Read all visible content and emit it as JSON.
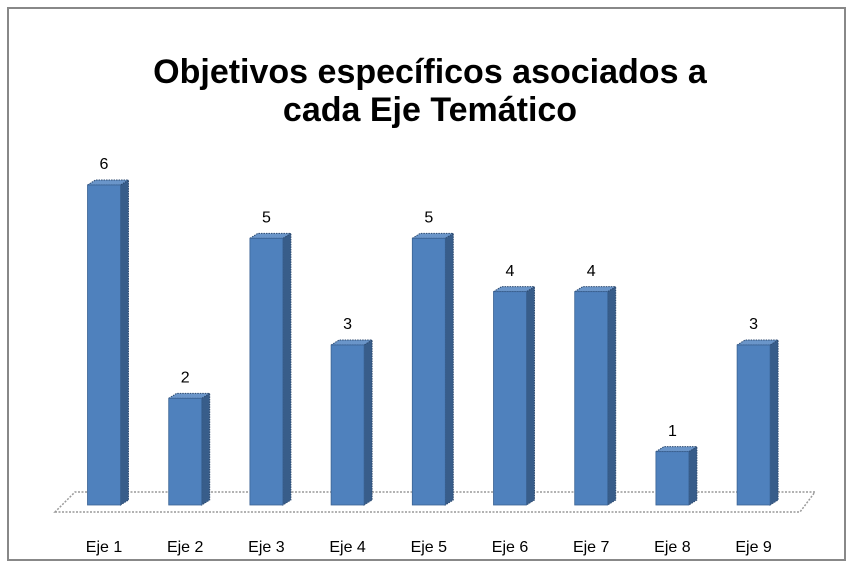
{
  "chart_data": {
    "type": "bar3d",
    "title": [
      "Objetivos específicos asociados a",
      "cada Eje Temático"
    ],
    "categories": [
      "Eje 1",
      "Eje 2",
      "Eje 3",
      "Eje 4",
      "Eje 5",
      "Eje 6",
      "Eje 7",
      "Eje 8",
      "Eje 9"
    ],
    "values": [
      6,
      2,
      5,
      3,
      5,
      4,
      4,
      1,
      3
    ],
    "color": "#4f81bd"
  }
}
